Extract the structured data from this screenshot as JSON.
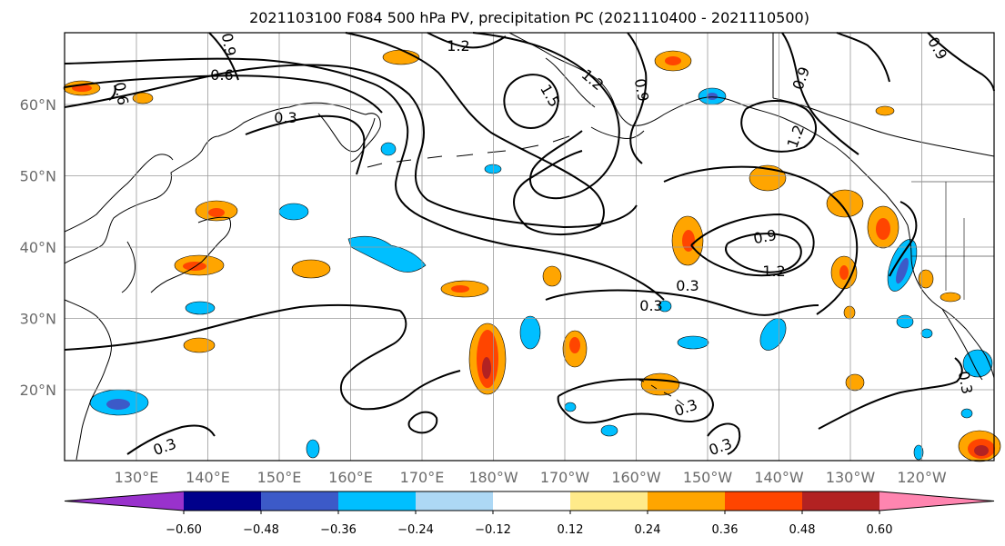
{
  "title": "2021103100 F084 500 hPa PV, precipitation PC (2021110400 - 2021110500)",
  "map": {
    "lat_labels": [
      "60°N",
      "50°N",
      "40°N",
      "30°N",
      "20°N"
    ],
    "lon_labels": [
      "130°E",
      "140°E",
      "150°E",
      "160°E",
      "170°E",
      "180°W",
      "170°W",
      "160°W",
      "150°W",
      "140°W",
      "130°W",
      "120°W"
    ],
    "pv_contour_labels": [
      "1.2",
      "0.9",
      "0.6",
      "0.6",
      "1.5",
      "1.2",
      "0.9",
      "0.9",
      "1.2",
      "0.3",
      "0.9",
      "1.2",
      "0.3",
      "0.3",
      "0.3",
      "0.3",
      "0.3",
      "0.3",
      "0.9"
    ]
  },
  "colorbar": {
    "colors": [
      "#9932cc",
      "#00008b",
      "#3c5ac8",
      "#00bfff",
      "#add8f5",
      "#ffffff",
      "#ffea8a",
      "#ffa500",
      "#ff4500",
      "#b22222",
      "#ff85b0"
    ],
    "tick_labels": [
      "−0.60",
      "−0.48",
      "−0.36",
      "−0.24",
      "−0.12",
      "0.12",
      "0.24",
      "0.36",
      "0.48",
      "0.60"
    ]
  }
}
